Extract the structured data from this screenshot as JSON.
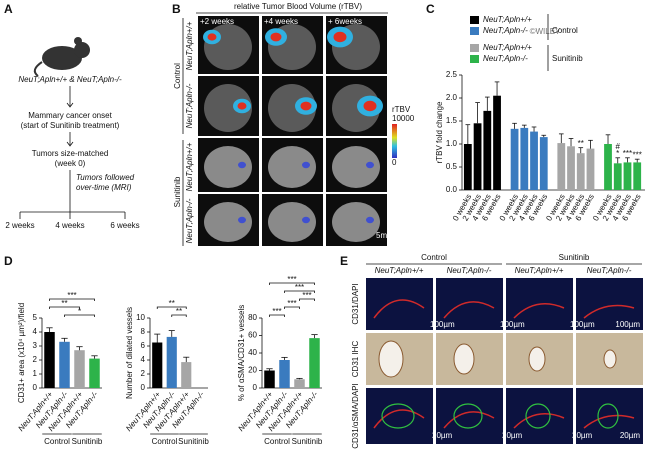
{
  "panel_labels": [
    "A",
    "B",
    "C",
    "D",
    "E"
  ],
  "watermark": "©WILEY",
  "panel_a": {
    "mouse_label": "NeuT;Apln+/+ & NeuT;Apln-/-",
    "step1": [
      "Mammary cancer onset",
      "(start of Sunitinib treatment)"
    ],
    "step2": [
      "Tumors size-matched",
      "(week 0)"
    ],
    "followup": [
      "Tumors followed",
      "over-time (MRI)"
    ],
    "timepoints": [
      "2 weeks",
      "4 weeks",
      "6 weeks"
    ]
  },
  "panel_b": {
    "title": "relative Tumor Blood Volume (rTBV)",
    "columns": [
      "+2 weeks",
      "+4 weeks",
      "+ 6weeks"
    ],
    "groups": [
      "Control",
      "Sunitinib"
    ],
    "rows": [
      "NeuT;Apln+/+",
      "NeuT;Apln-/-",
      "NeuT;Apln+/+",
      "NeuT;Apln-/-"
    ],
    "colorbar": {
      "label": "rTBV",
      "max": 10000,
      "min": 0
    },
    "scale_bar": "5mm"
  },
  "chart_data": [
    {
      "type": "bar",
      "y_label": "rTBV fold change",
      "categories": [
        "0 weeks",
        "2 weeks",
        "4 weeks",
        "6 weeks"
      ],
      "legend_groups": [
        "Control",
        "Sunitinib"
      ],
      "series": [
        {
          "name": "NeuT;Apln+/+",
          "color": "#000000",
          "values": [
            1.0,
            1.45,
            1.72,
            2.05
          ],
          "errors": [
            0.42,
            0.45,
            0.3,
            0.3
          ],
          "annotations": [
            null,
            null,
            null,
            null
          ]
        },
        {
          "name": "NeuT;Apln-/-",
          "color": "#3a7bbf",
          "values": [
            1.33,
            1.35,
            1.27,
            1.15
          ],
          "errors": [
            0.12,
            0.06,
            0.1,
            0.04
          ],
          "annotations": [
            null,
            null,
            null,
            null
          ]
        },
        {
          "name": "NeuT;Apln+/+",
          "color": "#a6a6a6",
          "values": [
            1.02,
            0.95,
            0.8,
            0.9
          ],
          "errors": [
            0.2,
            0.17,
            0.12,
            0.18
          ],
          "annotations": [
            null,
            null,
            "**",
            null
          ]
        },
        {
          "name": "NeuT;Apln-/-",
          "color": "#2db34a",
          "values": [
            1.0,
            0.58,
            0.6,
            0.6
          ],
          "errors": [
            0.2,
            0.12,
            0.1,
            0.07
          ],
          "annotations": [
            null,
            [
              "#",
              "*"
            ],
            "***",
            "***"
          ]
        }
      ],
      "ylim": [
        0,
        2.5
      ],
      "yticks": [
        {
          "value": 0,
          "label": "0.0"
        },
        {
          "value": 0.5,
          "label": "0.5"
        },
        {
          "value": 1,
          "label": "1.0"
        },
        {
          "value": 1.5,
          "label": "1.5"
        },
        {
          "value": 2,
          "label": "2.0"
        },
        {
          "value": 2.5,
          "label": "2.5"
        }
      ]
    },
    {
      "type": "bar",
      "y_label": "CD31+ area (x10⁴ µm²)/field",
      "categories": [
        "NeuT;Apln+/+",
        "NeuT;Apln-/-",
        "NeuT;Apln+/+",
        "NeuT;Apln-/-"
      ],
      "groups": [
        "Control",
        "Sunitinib"
      ],
      "colors": [
        "#000000",
        "#3a7bbf",
        "#a6a6a6",
        "#2db34a"
      ],
      "values": [
        4.0,
        3.3,
        2.7,
        2.1
      ],
      "errors": [
        0.3,
        0.25,
        0.25,
        0.2
      ],
      "brackets": [
        {
          "text": "***",
          "between": [
            0,
            3
          ]
        },
        {
          "text": "**",
          "between": [
            0,
            2
          ]
        },
        {
          "text": "*",
          "between": [
            1,
            3
          ]
        }
      ],
      "ylim": [
        0,
        5
      ],
      "yticks": [
        0,
        1,
        2,
        3,
        4,
        5
      ]
    },
    {
      "type": "bar",
      "y_label": "Number of dilated vessels",
      "categories": [
        "NeuT;Apln+/+",
        "NeuT;Apln-/-",
        "NeuT;Apln+/+",
        "NeuT;Apln-/-"
      ],
      "groups": [
        "Control",
        "Sunitinib"
      ],
      "colors": [
        "#000000",
        "#3a7bbf",
        "#a6a6a6",
        "#2db34a"
      ],
      "values": [
        6.5,
        7.3,
        3.7,
        0
      ],
      "errors": [
        1.2,
        0.9,
        0.7,
        0
      ],
      "brackets": [
        {
          "text": "**",
          "between": [
            0,
            2
          ]
        },
        {
          "text": "**",
          "between": [
            1,
            2
          ]
        }
      ],
      "ylim": [
        0,
        10
      ],
      "yticks": [
        0,
        2,
        4,
        6,
        8,
        10
      ]
    },
    {
      "type": "bar",
      "y_label": "% of αSMA/CD31+ vessels",
      "categories": [
        "NeuT;Apln+/+",
        "NeuT;Apln-/-",
        "NeuT;Apln+/+",
        "NeuT;Apln-/-"
      ],
      "groups": [
        "Control",
        "Sunitinib"
      ],
      "colors": [
        "#000000",
        "#3a7bbf",
        "#a6a6a6",
        "#2db34a"
      ],
      "values": [
        20,
        32,
        10,
        57
      ],
      "errors": [
        2,
        3,
        1,
        4
      ],
      "brackets": [
        {
          "text": "***",
          "between": [
            0,
            3
          ]
        },
        {
          "text": "***",
          "between": [
            1,
            3
          ]
        },
        {
          "text": "***",
          "between": [
            2,
            3
          ]
        },
        {
          "text": "***",
          "between": [
            1,
            2
          ]
        },
        {
          "text": "***",
          "between": [
            0,
            1
          ]
        }
      ],
      "ylim": [
        0,
        80
      ],
      "yticks": [
        0,
        20,
        40,
        60,
        80
      ]
    }
  ],
  "panel_e": {
    "groups": [
      "Control",
      "Sunitinib"
    ],
    "columns": [
      "NeuT;Apln+/+",
      "NeuT;Apln-/-",
      "NeuT;Apln+/+",
      "NeuT;Apln-/-"
    ],
    "rows": [
      "CD31/DAPI",
      "CD31 IHC",
      "CD31/αSMA/DAPI"
    ],
    "scale_bars": [
      "100µm",
      "20µm"
    ]
  }
}
